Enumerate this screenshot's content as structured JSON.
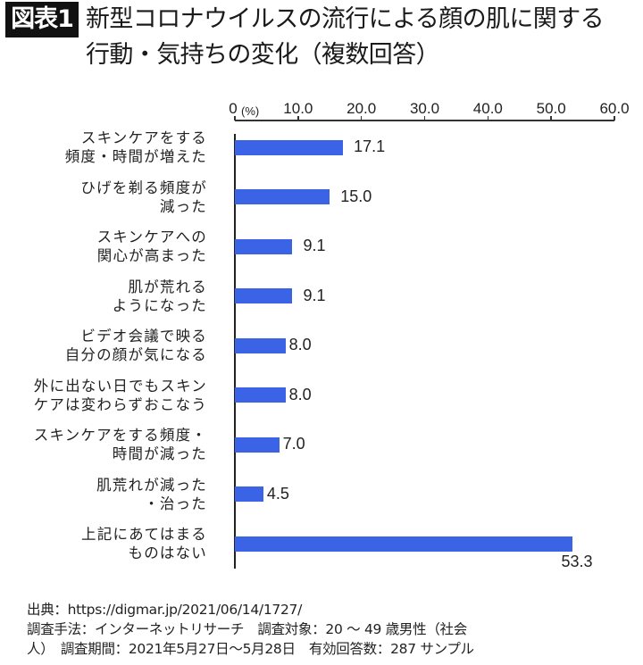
{
  "header": {
    "badge": "図表1",
    "title_line1": "新型コロナウイルスの流行による顔の肌に関する",
    "title_line2": "行動・気持ちの変化（複数回答）"
  },
  "chart_data": {
    "type": "bar",
    "orientation": "horizontal",
    "title": "新型コロナウイルスの流行による顔の肌に関する行動・気持ちの変化（複数回答）",
    "xlabel": "(%)",
    "ylabel": "",
    "xlim": [
      0,
      60
    ],
    "x_ticks": [
      "0",
      "10.0",
      "20.0",
      "30.0",
      "40.0",
      "50.0",
      "60.0"
    ],
    "grid": false,
    "legend": null,
    "bar_color": "#3a63e6",
    "categories": [
      "スキンケアをする頻度・時間が増えた",
      "ひげを剃る頻度が減った",
      "スキンケアへの関心が高まった",
      "肌が荒れるようになった",
      "ビデオ会議で映る自分の顔が気になる",
      "外に出ない日でもスキンケアは変わらずおこなう",
      "スキンケアをする頻度・時間が減った",
      "肌荒れが減った・治った",
      "上記にあてはまるものはない"
    ],
    "category_lines": [
      [
        "スキンケアをする",
        "頻度・時間が増えた"
      ],
      [
        "ひげを剃る頻度が",
        "減った"
      ],
      [
        "スキンケアへの",
        "関心が高まった"
      ],
      [
        "肌が荒れる",
        "ようになった"
      ],
      [
        "ビデオ会議で映る",
        "自分の顔が気になる"
      ],
      [
        "外に出ない日でもスキン",
        "ケアは変わらずおこなう"
      ],
      [
        "スキンケアをする頻度・",
        "時間が減った"
      ],
      [
        "肌荒れが減った",
        "・治った"
      ],
      [
        "上記にあてはまる",
        "ものはない"
      ]
    ],
    "values": [
      17.1,
      15.0,
      9.1,
      9.1,
      8.0,
      8.0,
      7.0,
      4.5,
      53.3
    ],
    "value_labels": [
      "17.1",
      "15.0",
      "9.1",
      "9.1",
      "8.0",
      "8.0",
      "7.0",
      "4.5",
      "53.3"
    ]
  },
  "footer": {
    "source": "出典：https://digmar.jp/2021/06/14/1727/",
    "method_line": "調査手法：インターネットリサーチ　調査対象：20 ～ 49 歳男性（社会",
    "period_line": "人）　調査期間：2021年5月27日～5月28日　有効回答数：287 サンプル"
  }
}
